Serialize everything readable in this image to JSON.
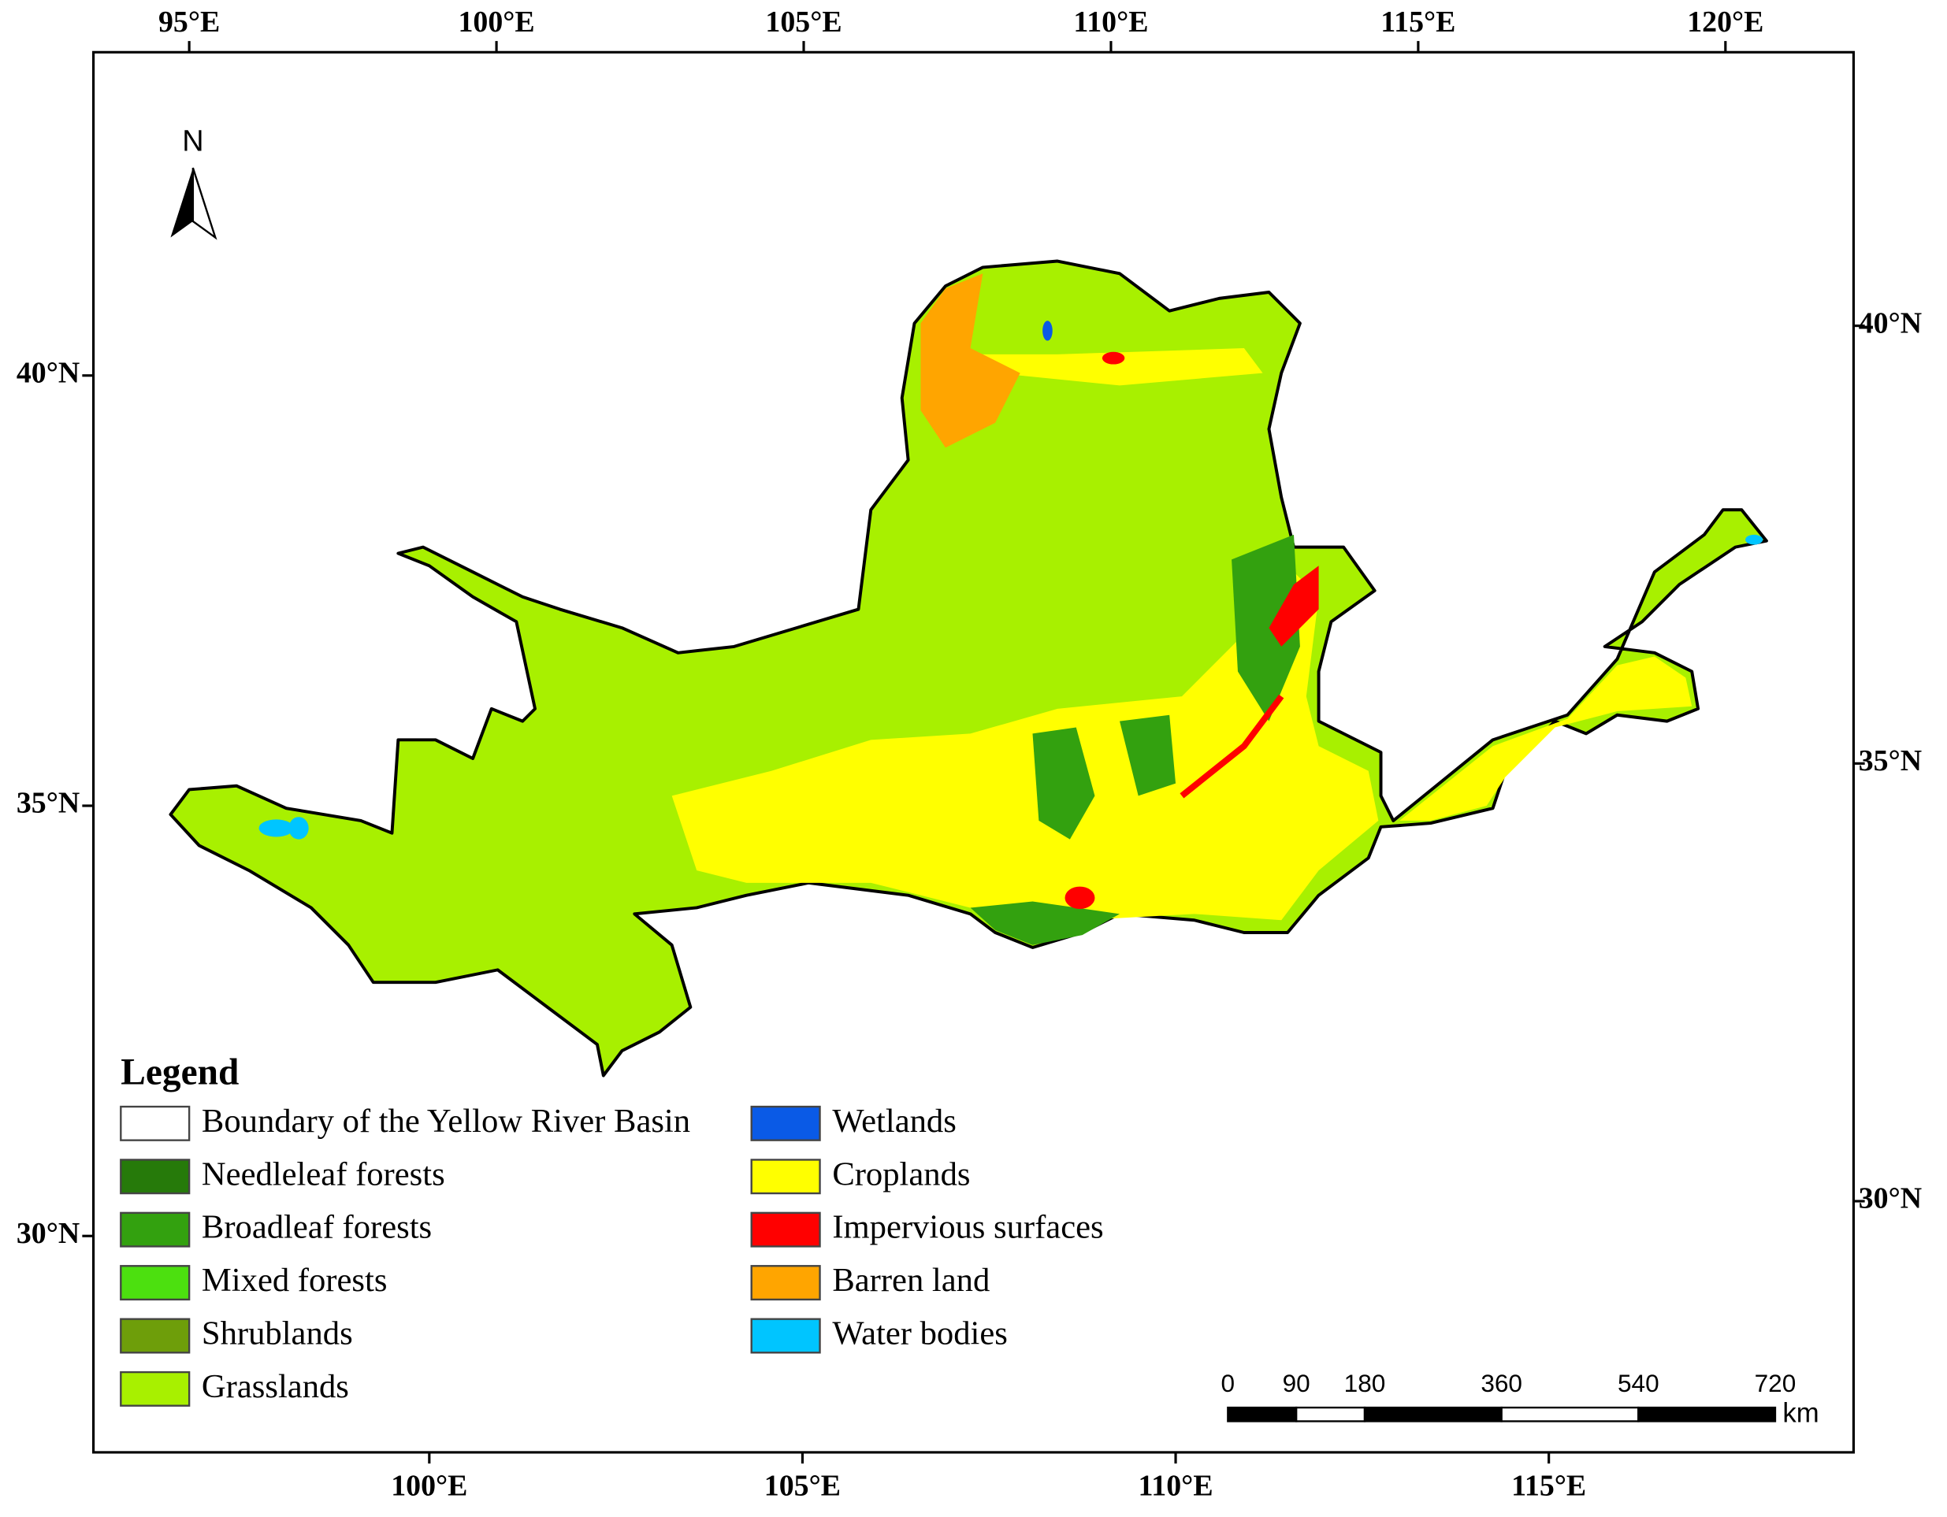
{
  "map": {
    "north_arrow": "N",
    "top_ticks": [
      {
        "value": 95,
        "label": "95°E"
      },
      {
        "value": 100,
        "label": "100°E"
      },
      {
        "value": 105,
        "label": "105°E"
      },
      {
        "value": 110,
        "label": "110°E"
      },
      {
        "value": 115,
        "label": "115°E"
      },
      {
        "value": 120,
        "label": "120°E"
      }
    ],
    "bottom_ticks": [
      {
        "value": 100,
        "label": "100°E"
      },
      {
        "value": 105,
        "label": "105°E"
      },
      {
        "value": 110,
        "label": "110°E"
      },
      {
        "value": 115,
        "label": "115°E"
      }
    ],
    "left_ticks": [
      {
        "value": 40,
        "label": "40°N"
      },
      {
        "value": 35,
        "label": "35°N"
      },
      {
        "value": 30,
        "label": "30°N"
      }
    ],
    "right_ticks": [
      {
        "value": 40,
        "label": "40°N"
      },
      {
        "value": 35,
        "label": "35°N"
      },
      {
        "value": 30,
        "label": "30°N"
      }
    ],
    "legend": {
      "title": "Legend",
      "items": [
        {
          "label": "Boundary of the Yellow River Basin",
          "color": "#ffffff"
        },
        {
          "label": "Needleleaf forests",
          "color": "#267a0a"
        },
        {
          "label": "Broadleaf forests",
          "color": "#33a10f"
        },
        {
          "label": "Mixed forests",
          "color": "#4ce00f"
        },
        {
          "label": "Shrublands",
          "color": "#6e9e0a"
        },
        {
          "label": "Grasslands",
          "color": "#a8f000"
        },
        {
          "label": "Wetlands",
          "color": "#0a5ae6"
        },
        {
          "label": "Croplands",
          "color": "#ffff00"
        },
        {
          "label": "Impervious surfaces",
          "color": "#ff0000"
        },
        {
          "label": "Barren land",
          "color": "#ffa500"
        },
        {
          "label": "Water bodies",
          "color": "#00c5ff"
        }
      ]
    },
    "scale_bar": {
      "ticks": [
        0,
        90,
        180,
        360,
        540,
        720
      ],
      "unit": "km"
    }
  }
}
